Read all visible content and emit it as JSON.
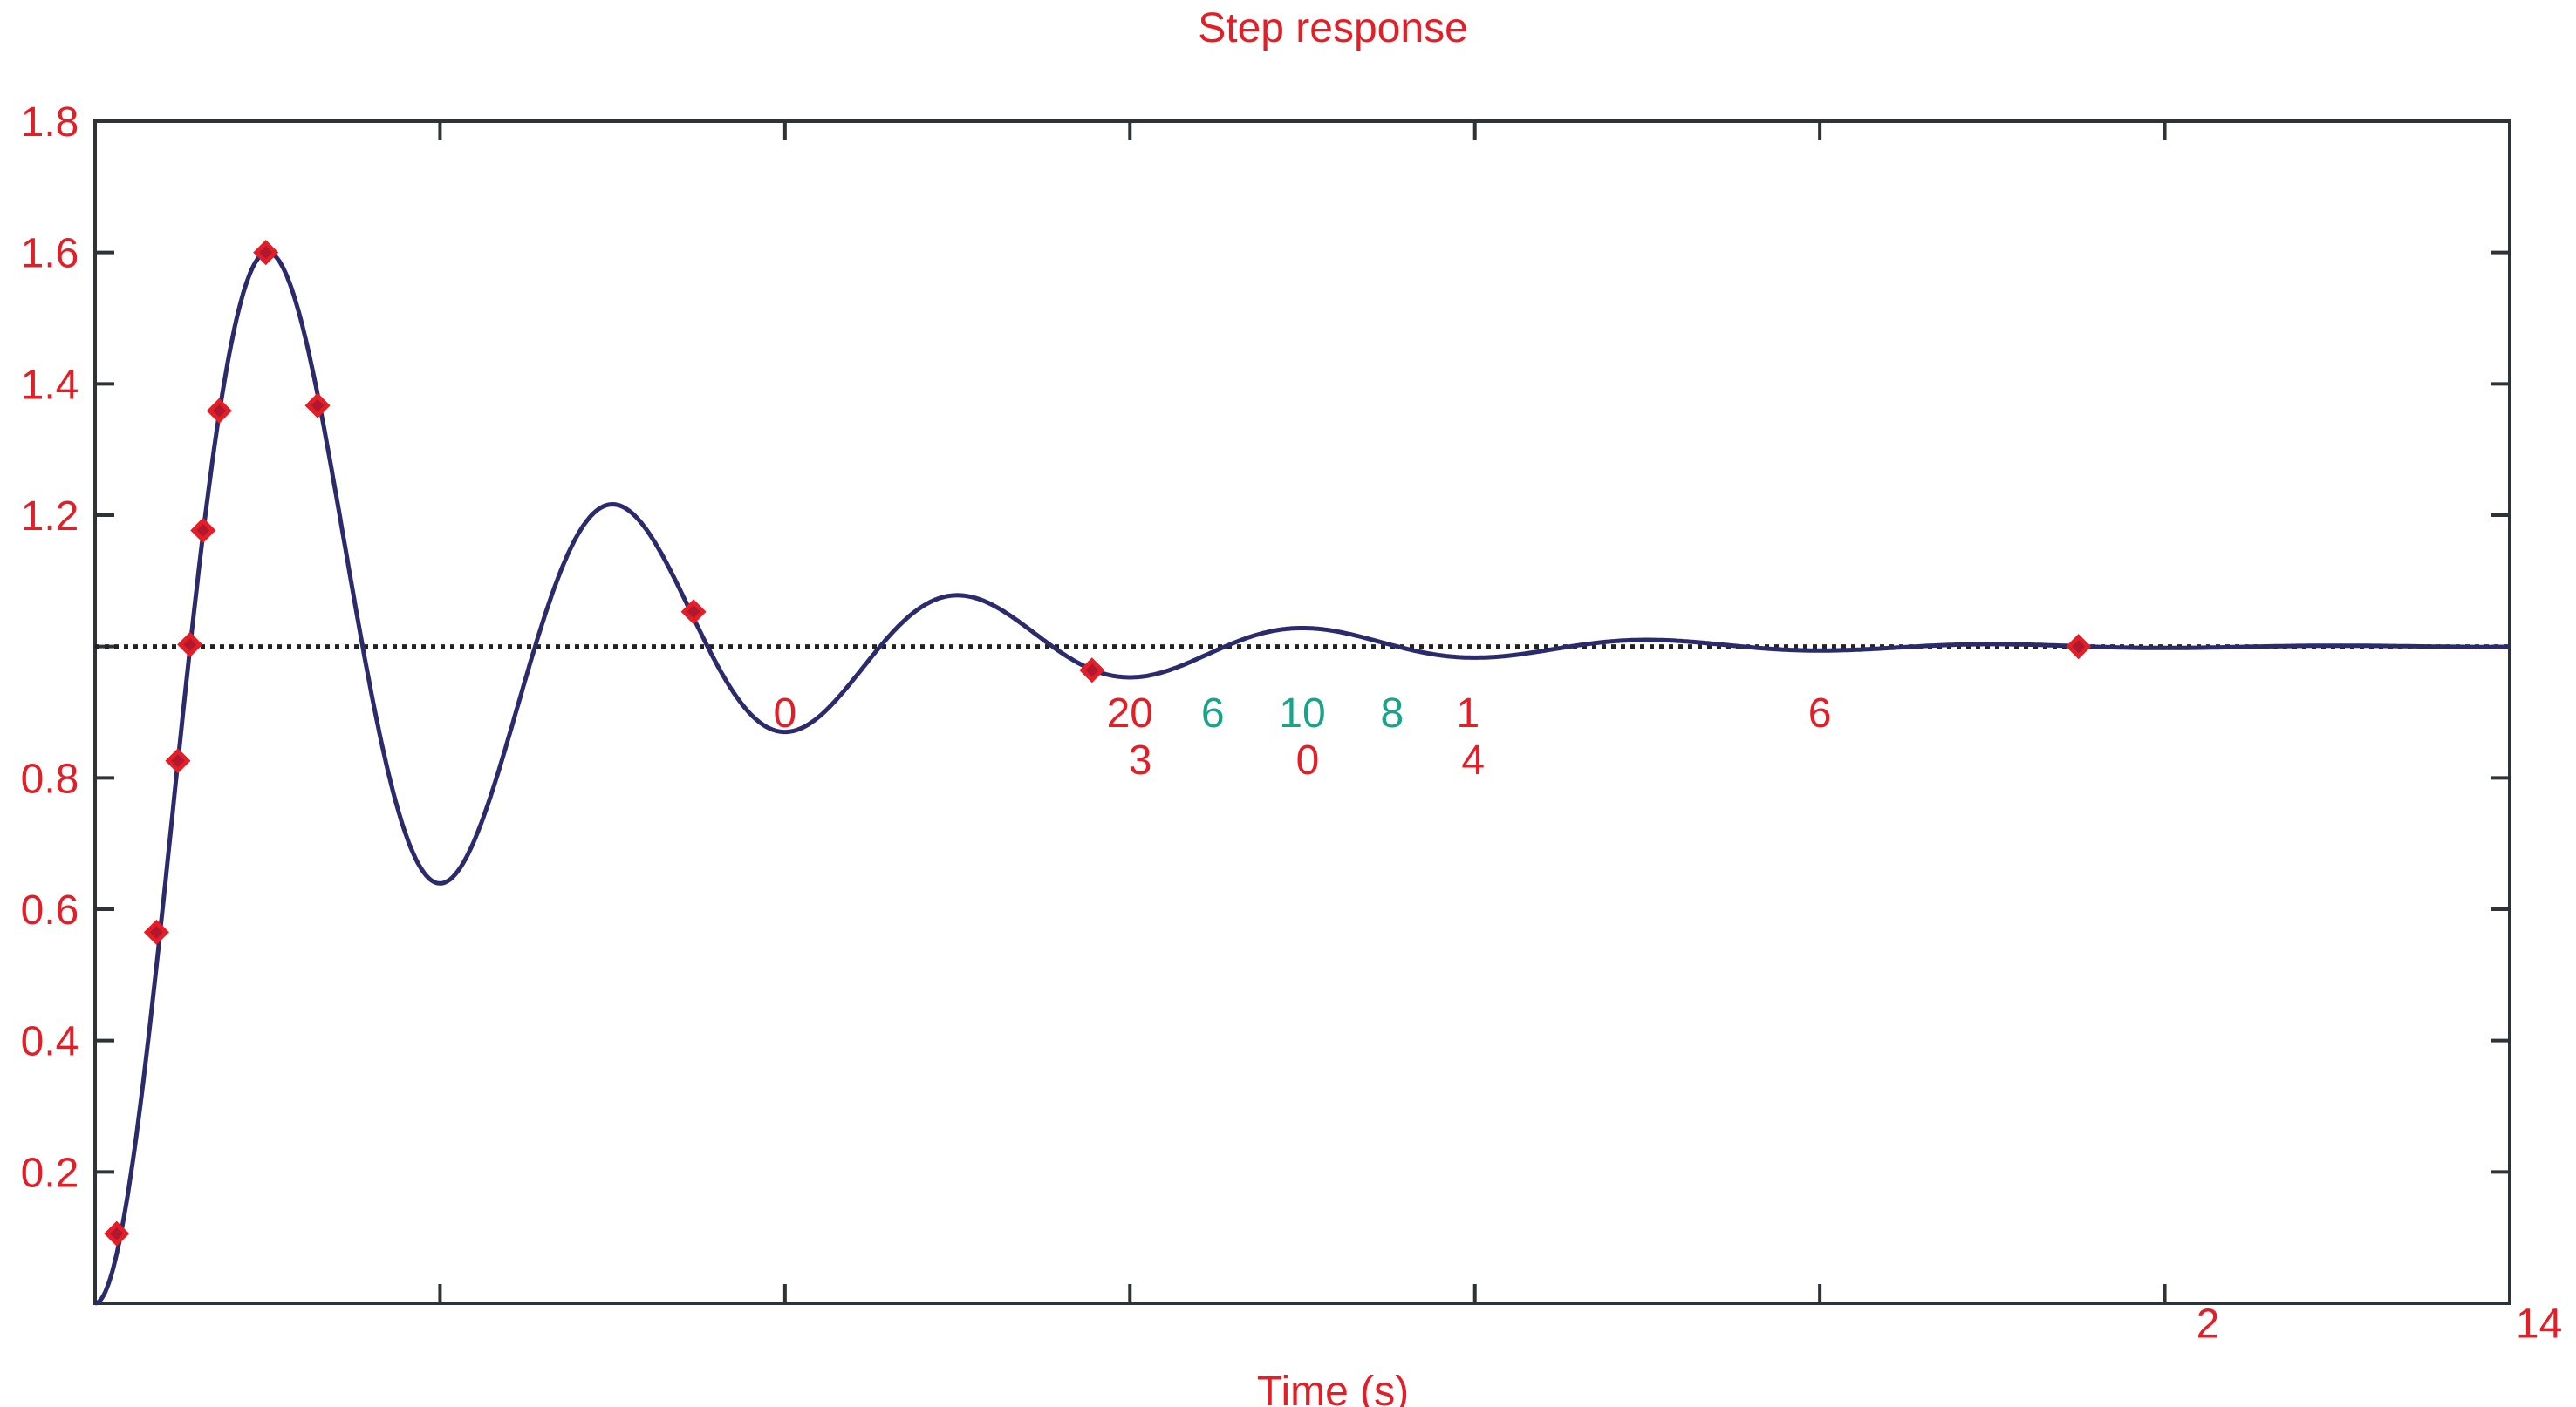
{
  "chart_data": {
    "type": "line",
    "title": "Step response",
    "xlabel": "Time (s)",
    "ylabel": "",
    "xlim": [
      0,
      14
    ],
    "ylim": [
      0,
      1.8
    ],
    "grid": false,
    "reference_line": {
      "y": 1.0,
      "style": "dotted"
    },
    "y_ticks": [
      0.2,
      0.4,
      0.6,
      0.8,
      1.2,
      1.4,
      1.6,
      1.8
    ],
    "y_tick_labels": [
      "0.2",
      "0.4",
      "0.6",
      "0.8",
      "1.2",
      "1.4",
      "1.6",
      "1.8"
    ],
    "x_ticks": [
      2,
      4,
      6,
      8,
      10,
      12
    ],
    "x_tick_labels": [
      {
        "text": "0",
        "x": 4.0,
        "y": 0.9,
        "color": "#e41e26"
      },
      {
        "text": "20",
        "x": 6.0,
        "y": 0.9,
        "color": "#e41e26"
      },
      {
        "text": "3",
        "x": 6.06,
        "y": 0.9,
        "color": "#e41e26"
      },
      {
        "text": "6",
        "x": 6.48,
        "y": 0.9,
        "color": "#18a489"
      },
      {
        "text": "10",
        "x": 7.0,
        "y": 0.9,
        "color": "#18a489"
      },
      {
        "text": "0",
        "x": 7.03,
        "y": 0.9,
        "color": "#e41e26"
      },
      {
        "text": "8",
        "x": 7.52,
        "y": 0.9,
        "color": "#18a489"
      },
      {
        "text": "1",
        "x": 7.96,
        "y": 0.9,
        "color": "#e41e26"
      },
      {
        "text": "4",
        "x": 7.99,
        "y": 0.9,
        "color": "#e41e26"
      },
      {
        "text": "6",
        "x": 10.0,
        "y": 0.9,
        "color": "#e41e26"
      },
      {
        "text": "2",
        "x": 12.25,
        "y": -0.03,
        "color": "#e41e26"
      },
      {
        "text": "14",
        "x": 14.17,
        "y": -0.03,
        "color": "#e41e26"
      }
    ],
    "series": [
      {
        "style": "line",
        "color": "#2b2b6b",
        "model": {
          "sigma": 0.51,
          "omega_d": 3.1416,
          "final_value": 1.0
        }
      },
      {
        "style": "diamond-markers",
        "color": "#e41e26",
        "x": [
          0.125,
          0.356,
          0.48,
          0.55,
          0.626,
          0.72,
          0.99,
          1.29,
          3.47,
          5.78,
          11.5
        ],
        "y": [
          0.106,
          0.565,
          0.826,
          1.003,
          1.177,
          1.359,
          1.6,
          1.367,
          1.053,
          0.964,
          1.0
        ]
      }
    ],
    "colors": {
      "text": "#e41e26",
      "alt_text": "#18a489",
      "axes": "#2e3338",
      "curve": "#2b2b6b",
      "marker": "#e41e26"
    }
  }
}
